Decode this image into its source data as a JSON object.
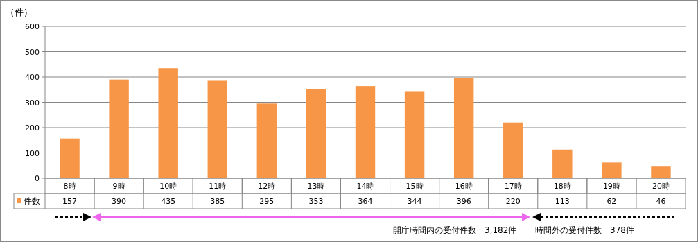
{
  "chart_data": {
    "type": "bar",
    "ylabel": "（件）",
    "categories": [
      "8時",
      "9時",
      "10時",
      "11時",
      "12時",
      "13時",
      "14時",
      "15時",
      "16時",
      "17時",
      "18時",
      "19時",
      "20時"
    ],
    "series": [
      {
        "name": "件数",
        "color": "#f79646",
        "values": [
          157,
          390,
          435,
          385,
          295,
          353,
          364,
          344,
          396,
          220,
          113,
          62,
          46
        ]
      }
    ],
    "ylim": [
      0,
      600
    ],
    "yticks": [
      0,
      100,
      200,
      300,
      400,
      500,
      600
    ],
    "grid": "y",
    "legend": "bottom left",
    "data_labels": true,
    "annotations": [
      "開庁時間内の受付件数　3,182件",
      "時間外の受付件数　378件"
    ]
  }
}
